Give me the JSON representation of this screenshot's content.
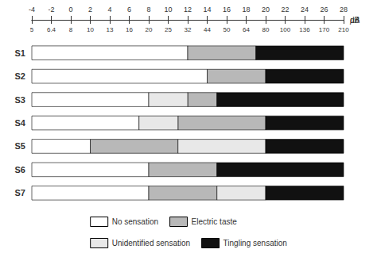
{
  "chart_data": {
    "type": "bar",
    "orientation": "horizontal",
    "categories": [
      "S1",
      "S2",
      "S3",
      "S4",
      "S5",
      "S6",
      "S7"
    ],
    "series": [
      {
        "name": "No sensation",
        "color": "#ffffff",
        "values": [
          [
            -4,
            12
          ],
          [
            -4,
            14
          ],
          [
            -4,
            8
          ],
          [
            -4,
            7
          ],
          [
            -4,
            2
          ],
          [
            -4,
            8
          ],
          [
            -4,
            8
          ]
        ]
      },
      {
        "name": "Electric taste",
        "color": "#b8b8b8",
        "values": [
          [
            12,
            19
          ],
          [
            14,
            20
          ],
          [
            12,
            15
          ],
          [
            11,
            20
          ],
          [
            2,
            11
          ],
          [
            8,
            15
          ],
          [
            8,
            15
          ]
        ]
      },
      {
        "name": "Unidentified sensation",
        "color": "#e8e8e8",
        "values": [
          null,
          null,
          [
            8,
            12
          ],
          [
            7,
            11
          ],
          [
            11,
            20
          ],
          null,
          [
            15,
            20
          ]
        ]
      },
      {
        "name": "Tingling sensation",
        "color": "#111111",
        "values": [
          [
            19,
            28
          ],
          [
            20,
            28
          ],
          [
            15,
            28
          ],
          [
            20,
            28
          ],
          [
            20,
            28
          ],
          [
            15,
            28
          ],
          [
            20,
            28
          ]
        ]
      }
    ],
    "xlabel": "dB",
    "xlim": [
      -4,
      28
    ],
    "xticks": [
      -4,
      -2,
      0,
      2,
      4,
      6,
      8,
      10,
      12,
      14,
      16,
      18,
      20,
      22,
      24,
      26,
      28
    ],
    "x2label": "µA",
    "x2lim": [
      -4,
      28
    ],
    "x2ticks": [
      {
        "value": -4,
        "label": "5"
      },
      {
        "value": -2,
        "label": "6.4"
      },
      {
        "value": 0,
        "label": "8"
      },
      {
        "value": 2,
        "label": "10"
      },
      {
        "value": 4,
        "label": "13"
      },
      {
        "value": 6,
        "label": "16"
      },
      {
        "value": 8,
        "label": "20"
      },
      {
        "value": 10,
        "label": "25"
      },
      {
        "value": 12,
        "label": "32"
      },
      {
        "value": 14,
        "label": "44"
      },
      {
        "value": 16,
        "label": "50"
      },
      {
        "value": 18,
        "label": "64"
      },
      {
        "value": 20,
        "label": "80"
      },
      {
        "value": 22,
        "label": "100"
      },
      {
        "value": 24,
        "label": "136"
      },
      {
        "value": 26,
        "label": "170"
      },
      {
        "value": 28,
        "label": "210"
      }
    ],
    "legend": "bottom",
    "grid": false
  }
}
